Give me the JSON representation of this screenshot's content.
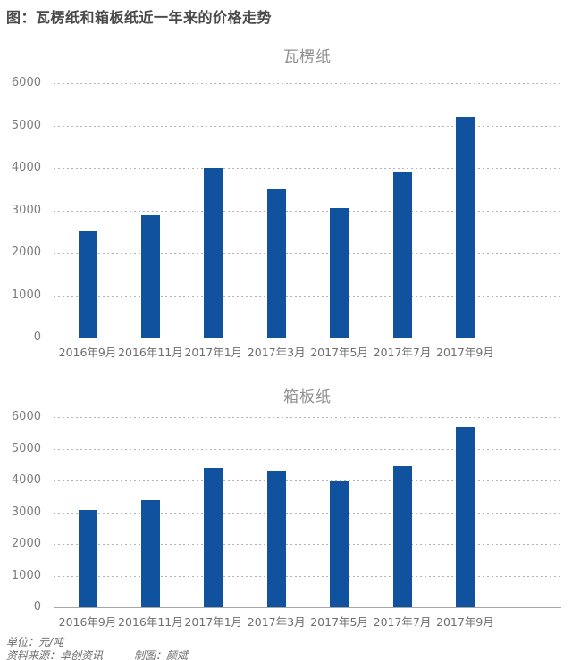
{
  "page": {
    "title": "图：瓦楞纸和箱板纸近一年来的价格走势",
    "footer": {
      "unit": "单位：元/吨",
      "source": "资料来源：卓创资讯",
      "credit": "制图：颜斌"
    }
  },
  "colors": {
    "bar": "#10529e",
    "gridline": "#b4b4b4",
    "axis_line": "#a6a6a6",
    "main_title": "#4a4a4a",
    "chart_title": "#8f8f8f",
    "tick_text": "#7c7c7c"
  },
  "chart_data": [
    {
      "type": "bar",
      "title": "瓦楞纸",
      "categories": [
        "2016年9月",
        "2016年11月",
        "2017年1月",
        "2017年3月",
        "2017年5月",
        "2017年7月",
        "2017年9月"
      ],
      "values": [
        2500,
        2880,
        4000,
        3500,
        3050,
        3900,
        5200
      ],
      "ylim": [
        0,
        6000
      ],
      "ytick_interval": 1000,
      "yticks": [
        0,
        1000,
        2000,
        3000,
        4000,
        5000,
        6000
      ],
      "grid": true,
      "legend": false,
      "bar_color": "#10529e",
      "xlabel": "",
      "ylabel": ""
    },
    {
      "type": "bar",
      "title": "箱板纸",
      "categories": [
        "2016年9月",
        "2016年11月",
        "2017年1月",
        "2017年3月",
        "2017年5月",
        "2017年7月",
        "2017年9月"
      ],
      "values": [
        3080,
        3380,
        4400,
        4300,
        3980,
        4450,
        5700
      ],
      "ylim": [
        0,
        6000
      ],
      "ytick_interval": 1000,
      "yticks": [
        0,
        1000,
        2000,
        3000,
        4000,
        5000,
        6000
      ],
      "grid": true,
      "legend": false,
      "bar_color": "#10529e",
      "xlabel": "",
      "ylabel": ""
    }
  ]
}
